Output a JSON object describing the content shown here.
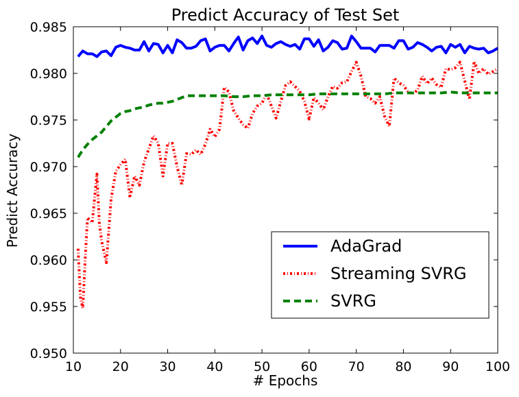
{
  "chart_data": {
    "type": "line",
    "title": "Predict Accuracy of Test Set",
    "xlabel": "# Epochs",
    "ylabel": "Predict Accuracy",
    "xlim": [
      10,
      100
    ],
    "ylim": [
      0.95,
      0.985
    ],
    "xticks": [
      "10",
      "20",
      "30",
      "40",
      "50",
      "60",
      "70",
      "80",
      "90",
      "100"
    ],
    "yticks": [
      "0.950",
      "0.955",
      "0.960",
      "0.965",
      "0.970",
      "0.975",
      "0.980",
      "0.985"
    ],
    "grid": false,
    "legend_position": "lower-right",
    "series": [
      {
        "name": "AdaGrad",
        "color": "#0000ff",
        "style": "solid",
        "points": [
          [
            11,
            0.9818
          ],
          [
            12,
            0.9824
          ],
          [
            13,
            0.9821
          ],
          [
            14,
            0.9821
          ],
          [
            15,
            0.9818
          ],
          [
            16,
            0.9823
          ],
          [
            17,
            0.9824
          ],
          [
            18,
            0.9819
          ],
          [
            19,
            0.9828
          ],
          [
            20,
            0.983
          ],
          [
            21,
            0.9828
          ],
          [
            22,
            0.9827
          ],
          [
            23,
            0.9825
          ],
          [
            24,
            0.9825
          ],
          [
            25,
            0.9834
          ],
          [
            26,
            0.9824
          ],
          [
            27,
            0.9832
          ],
          [
            28,
            0.9831
          ],
          [
            29,
            0.9822
          ],
          [
            30,
            0.983
          ],
          [
            31,
            0.9822
          ],
          [
            32,
            0.9836
          ],
          [
            33,
            0.9833
          ],
          [
            34,
            0.9827
          ],
          [
            35,
            0.9827
          ],
          [
            36,
            0.9829
          ],
          [
            37,
            0.9835
          ],
          [
            38,
            0.9837
          ],
          [
            39,
            0.9824
          ],
          [
            40,
            0.9828
          ],
          [
            41,
            0.983
          ],
          [
            42,
            0.983
          ],
          [
            43,
            0.9824
          ],
          [
            44,
            0.9832
          ],
          [
            45,
            0.9839
          ],
          [
            46,
            0.9825
          ],
          [
            47,
            0.9835
          ],
          [
            48,
            0.9838
          ],
          [
            49,
            0.9832
          ],
          [
            50,
            0.984
          ],
          [
            51,
            0.983
          ],
          [
            52,
            0.9828
          ],
          [
            53,
            0.9832
          ],
          [
            54,
            0.9834
          ],
          [
            55,
            0.9831
          ],
          [
            56,
            0.9829
          ],
          [
            57,
            0.9831
          ],
          [
            58,
            0.9826
          ],
          [
            59,
            0.9837
          ],
          [
            60,
            0.9837
          ],
          [
            61,
            0.9829
          ],
          [
            62,
            0.9836
          ],
          [
            63,
            0.9824
          ],
          [
            64,
            0.9828
          ],
          [
            65,
            0.9835
          ],
          [
            66,
            0.9833
          ],
          [
            67,
            0.9826
          ],
          [
            68,
            0.9827
          ],
          [
            69,
            0.984
          ],
          [
            70,
            0.9834
          ],
          [
            71,
            0.9827
          ],
          [
            72,
            0.9827
          ],
          [
            73,
            0.9827
          ],
          [
            74,
            0.9823
          ],
          [
            75,
            0.983
          ],
          [
            76,
            0.983
          ],
          [
            77,
            0.983
          ],
          [
            78,
            0.9827
          ],
          [
            79,
            0.9835
          ],
          [
            80,
            0.9835
          ],
          [
            81,
            0.9826
          ],
          [
            82,
            0.9828
          ],
          [
            83,
            0.9833
          ],
          [
            84,
            0.9831
          ],
          [
            85,
            0.9828
          ],
          [
            86,
            0.9824
          ],
          [
            87,
            0.9828
          ],
          [
            88,
            0.9829
          ],
          [
            89,
            0.9822
          ],
          [
            90,
            0.9831
          ],
          [
            91,
            0.9828
          ],
          [
            92,
            0.9831
          ],
          [
            93,
            0.9822
          ],
          [
            94,
            0.9829
          ],
          [
            95,
            0.9827
          ],
          [
            96,
            0.9826
          ],
          [
            97,
            0.9827
          ],
          [
            98,
            0.9822
          ],
          [
            99,
            0.9824
          ],
          [
            100,
            0.9827
          ]
        ]
      },
      {
        "name": "Streaming SVRG",
        "color": "#ff0000",
        "style": "dashdot",
        "points": [
          [
            11,
            0.9612
          ],
          [
            11.5,
            0.956
          ],
          [
            12,
            0.9548
          ],
          [
            12.5,
            0.96
          ],
          [
            13,
            0.9645
          ],
          [
            14,
            0.964
          ],
          [
            15,
            0.9692
          ],
          [
            15.5,
            0.964
          ],
          [
            16,
            0.962
          ],
          [
            17,
            0.9597
          ],
          [
            18,
            0.9665
          ],
          [
            19,
            0.9695
          ],
          [
            20,
            0.9702
          ],
          [
            21,
            0.9708
          ],
          [
            22,
            0.9667
          ],
          [
            23,
            0.969
          ],
          [
            24,
            0.968
          ],
          [
            25,
            0.9705
          ],
          [
            26,
            0.9719
          ],
          [
            27,
            0.9733
          ],
          [
            28,
            0.9725
          ],
          [
            29,
            0.969
          ],
          [
            30,
            0.9725
          ],
          [
            31,
            0.9725
          ],
          [
            32,
            0.97
          ],
          [
            33,
            0.968
          ],
          [
            34,
            0.9714
          ],
          [
            35,
            0.9713
          ],
          [
            36,
            0.9718
          ],
          [
            37,
            0.9713
          ],
          [
            38,
            0.9724
          ],
          [
            39,
            0.974
          ],
          [
            40,
            0.9732
          ],
          [
            41,
            0.974
          ],
          [
            42,
            0.9785
          ],
          [
            43,
            0.978
          ],
          [
            44,
            0.976
          ],
          [
            45,
            0.9752
          ],
          [
            46,
            0.9745
          ],
          [
            47,
            0.9741
          ],
          [
            48,
            0.9757
          ],
          [
            49,
            0.9765
          ],
          [
            50,
            0.9768
          ],
          [
            51,
            0.9778
          ],
          [
            52,
            0.9765
          ],
          [
            53,
            0.9752
          ],
          [
            54,
            0.977
          ],
          [
            55,
            0.9787
          ],
          [
            56,
            0.9791
          ],
          [
            57,
            0.9786
          ],
          [
            58,
            0.9781
          ],
          [
            59,
            0.977
          ],
          [
            60,
            0.9751
          ],
          [
            61,
            0.9774
          ],
          [
            62,
            0.9768
          ],
          [
            63,
            0.9761
          ],
          [
            64,
            0.9775
          ],
          [
            65,
            0.9786
          ],
          [
            66,
            0.9784
          ],
          [
            67,
            0.979
          ],
          [
            68,
            0.9791
          ],
          [
            69,
            0.9802
          ],
          [
            70,
            0.9812
          ],
          [
            71,
            0.9797
          ],
          [
            72,
            0.9775
          ],
          [
            73,
            0.9773
          ],
          [
            74,
            0.9768
          ],
          [
            75,
            0.9775
          ],
          [
            76,
            0.9754
          ],
          [
            77,
            0.9743
          ],
          [
            78,
            0.9795
          ],
          [
            79,
            0.979
          ],
          [
            80,
            0.9787
          ],
          [
            81,
            0.978
          ],
          [
            82,
            0.9778
          ],
          [
            83,
            0.9782
          ],
          [
            84,
            0.9797
          ],
          [
            85,
            0.9789
          ],
          [
            86,
            0.9795
          ],
          [
            87,
            0.9788
          ],
          [
            88,
            0.9785
          ],
          [
            89,
            0.9805
          ],
          [
            90,
            0.9804
          ],
          [
            91,
            0.9806
          ],
          [
            92,
            0.9812
          ],
          [
            93,
            0.9792
          ],
          [
            94,
            0.9772
          ],
          [
            95,
            0.9813
          ],
          [
            96,
            0.98
          ],
          [
            97,
            0.9805
          ],
          [
            98,
            0.9799
          ],
          [
            99,
            0.9802
          ],
          [
            100,
            0.9805
          ]
        ]
      },
      {
        "name": "SVRG",
        "color": "#008000",
        "style": "dashed",
        "points": [
          [
            11,
            0.971
          ],
          [
            12,
            0.9718
          ],
          [
            13,
            0.9724
          ],
          [
            14,
            0.9729
          ],
          [
            15,
            0.9733
          ],
          [
            16,
            0.9737
          ],
          [
            17,
            0.9743
          ],
          [
            18,
            0.9749
          ],
          [
            19,
            0.9753
          ],
          [
            20,
            0.9757
          ],
          [
            21,
            0.9759
          ],
          [
            22,
            0.976
          ],
          [
            23,
            0.9762
          ],
          [
            24,
            0.9763
          ],
          [
            25,
            0.9764
          ],
          [
            26,
            0.9766
          ],
          [
            27,
            0.9767
          ],
          [
            28,
            0.9768
          ],
          [
            29,
            0.9768
          ],
          [
            30,
            0.9769
          ],
          [
            31,
            0.977
          ],
          [
            32,
            0.9772
          ],
          [
            33,
            0.9774
          ],
          [
            34,
            0.9776
          ],
          [
            35,
            0.9776
          ],
          [
            36,
            0.9776
          ],
          [
            37,
            0.9776
          ],
          [
            38,
            0.9776
          ],
          [
            39,
            0.9776
          ],
          [
            40,
            0.9776
          ],
          [
            42,
            0.9776
          ],
          [
            44,
            0.9775
          ],
          [
            46,
            0.9775
          ],
          [
            48,
            0.9776
          ],
          [
            50,
            0.9776
          ],
          [
            52,
            0.9777
          ],
          [
            54,
            0.9777
          ],
          [
            56,
            0.9777
          ],
          [
            58,
            0.9777
          ],
          [
            60,
            0.9777
          ],
          [
            62,
            0.9778
          ],
          [
            64,
            0.9778
          ],
          [
            66,
            0.9778
          ],
          [
            68,
            0.9778
          ],
          [
            70,
            0.9778
          ],
          [
            72,
            0.9778
          ],
          [
            74,
            0.9778
          ],
          [
            76,
            0.9778
          ],
          [
            78,
            0.9779
          ],
          [
            80,
            0.9779
          ],
          [
            82,
            0.9779
          ],
          [
            84,
            0.9779
          ],
          [
            86,
            0.9779
          ],
          [
            88,
            0.9779
          ],
          [
            90,
            0.978
          ],
          [
            92,
            0.9779
          ],
          [
            94,
            0.9779
          ],
          [
            96,
            0.9779
          ],
          [
            98,
            0.9779
          ],
          [
            100,
            0.9779
          ]
        ]
      }
    ]
  }
}
